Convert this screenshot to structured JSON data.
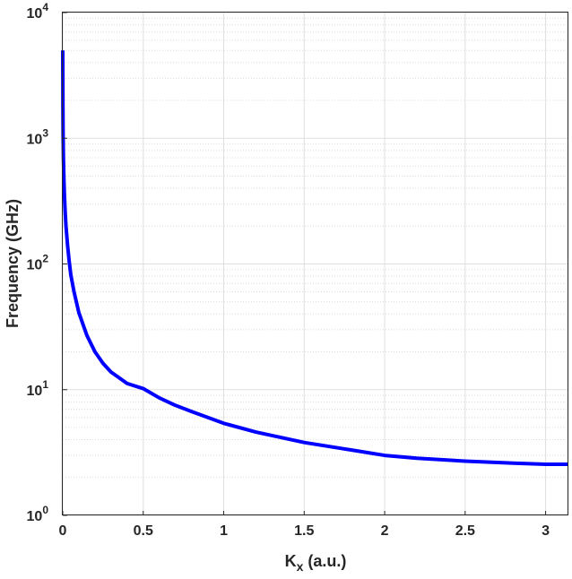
{
  "chart_data": {
    "type": "line",
    "title": "",
    "xlabel_main": "K",
    "xlabel_sub": "x",
    "xlabel_rest": " (a.u.)",
    "ylabel": "Frequency (GHz)",
    "xlim": [
      0,
      3.14159
    ],
    "ylim": [
      1,
      10000
    ],
    "yscale": "log",
    "grid": true,
    "minor_grid": true,
    "x_ticks": [
      0,
      0.5,
      1,
      1.5,
      2,
      2.5,
      3
    ],
    "x_tick_labels": [
      "0",
      "0.5",
      "1",
      "1.5",
      "2",
      "2.5",
      "3"
    ],
    "y_ticks": [
      1,
      10,
      100,
      1000,
      10000
    ],
    "y_tick_base": "10",
    "y_tick_exponents": [
      "0",
      "1",
      "2",
      "3",
      "4"
    ],
    "series": [
      {
        "color": "#0000ff",
        "x": [
          0.0,
          0.0005,
          0.001,
          0.002,
          0.004,
          0.007,
          0.01,
          0.015,
          0.02,
          0.03,
          0.04,
          0.05,
          0.07,
          0.1,
          0.15,
          0.2,
          0.25,
          0.3,
          0.4,
          0.5,
          0.6,
          0.7,
          0.8,
          1.0,
          1.2,
          1.5,
          1.8,
          2.0,
          2.2,
          2.5,
          2.8,
          3.0,
          3.14159
        ],
        "y": [
          5000,
          3200,
          1800,
          1100,
          700,
          480,
          360,
          260,
          200,
          140,
          105,
          82,
          60,
          41,
          27,
          20,
          16.2,
          13.8,
          11.2,
          10.2,
          8.6,
          7.5,
          6.7,
          5.4,
          4.6,
          3.8,
          3.3,
          3.0,
          2.85,
          2.7,
          2.6,
          2.55,
          2.55
        ]
      }
    ]
  }
}
